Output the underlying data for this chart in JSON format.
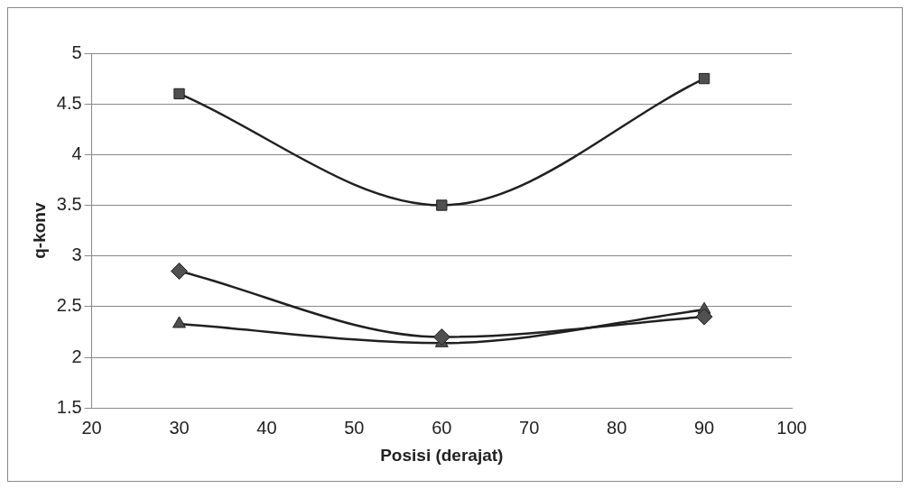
{
  "chart_data": {
    "type": "line",
    "xlabel": "Posisi (derajat)",
    "ylabel": "q-konv",
    "xlim": [
      20,
      100
    ],
    "xticks": [
      20,
      30,
      40,
      50,
      60,
      70,
      80,
      90,
      100
    ],
    "ylim": [
      1.5,
      5
    ],
    "yticks": [
      1.5,
      2,
      2.5,
      3,
      3.5,
      4,
      4.5,
      5
    ],
    "x": [
      30,
      60,
      90
    ],
    "grid": "y",
    "legend": false,
    "series": [
      {
        "color": "#505050",
        "marker": "diamond",
        "values": [
          2.85,
          2.2,
          2.4
        ]
      },
      {
        "color": "#505050",
        "marker": "square",
        "values": [
          4.6,
          3.5,
          4.75
        ]
      },
      {
        "color": "#505050",
        "marker": "triangle",
        "values": [
          2.33,
          2.14,
          2.47
        ]
      }
    ]
  }
}
